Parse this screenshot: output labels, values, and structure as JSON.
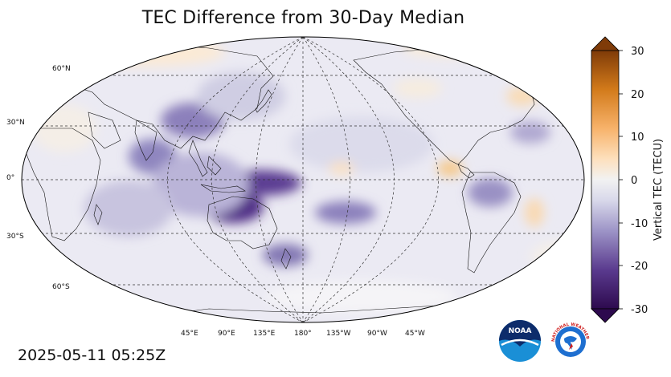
{
  "title": "TEC Difference from 30-Day Median",
  "timestamp": "2025-05-11 05:25Z",
  "lat_labels": [
    "60°N",
    "30°N",
    "0°",
    "30°S",
    "60°S"
  ],
  "lon_labels": [
    "45°E",
    "90°E",
    "135°E",
    "180°",
    "135°W",
    "90°W",
    "45°W"
  ],
  "colorbar": {
    "label": "Vertical TEC (TECU)",
    "ticks": [
      "30",
      "20",
      "10",
      "0",
      "-10",
      "-20",
      "-30"
    ],
    "range": [
      -30,
      30
    ],
    "low_color": "#2d0a4e",
    "mid_color": "#f2f2f2",
    "high_color": "#7f3b08"
  },
  "logos": {
    "noaa_text": "NOAA",
    "nws_text": "NATIONAL WEATHER SERVICE"
  },
  "icons": [
    "noaa-logo-icon",
    "nws-logo-icon"
  ]
}
